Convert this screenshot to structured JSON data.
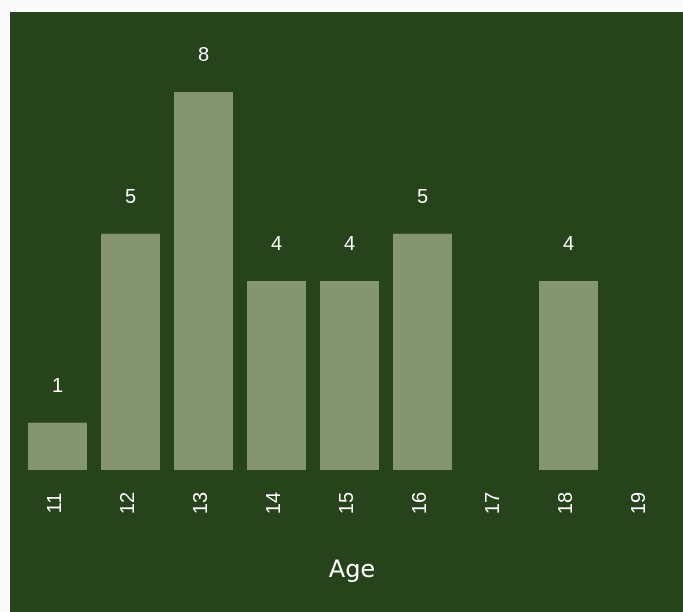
{
  "chart_data": {
    "type": "bar",
    "categories": [
      "11",
      "12",
      "13",
      "14",
      "15",
      "16",
      "17",
      "18",
      "19"
    ],
    "values": [
      1,
      5,
      8,
      4,
      4,
      5,
      0,
      4,
      0
    ],
    "title": "",
    "xlabel": "Age",
    "ylabel": "",
    "ylim": [
      0,
      8
    ],
    "grid": false,
    "show_value_labels": true,
    "hide_zero_bars": true,
    "tick_label_rotation": "vertical",
    "colors": {
      "background": "#26431b",
      "bar": "#85956f",
      "text": "#ffffff"
    }
  }
}
